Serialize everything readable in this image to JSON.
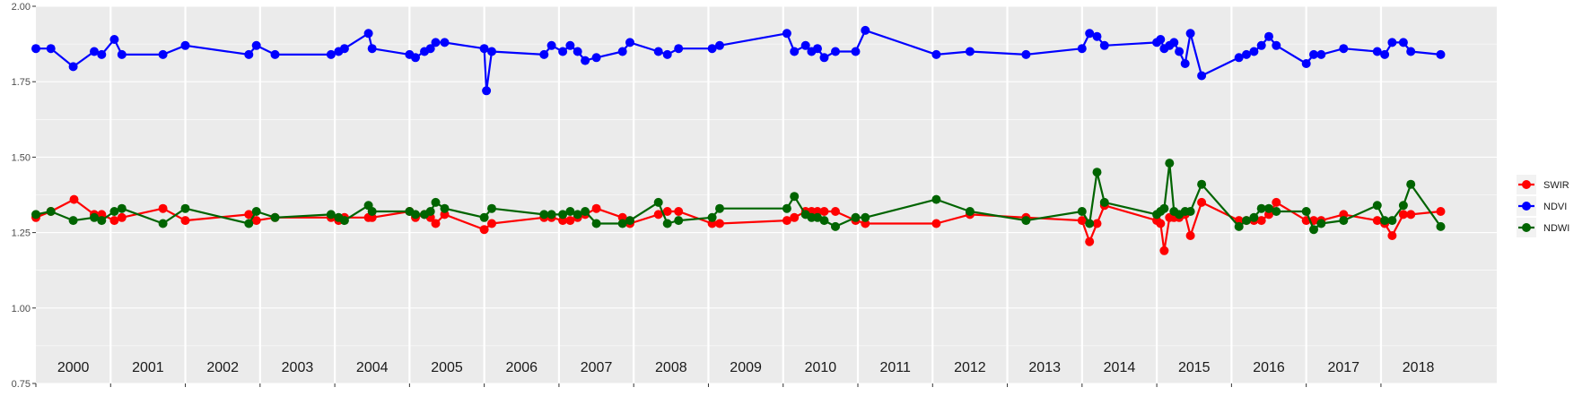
{
  "chart_data": {
    "type": "line",
    "title": "",
    "xlabel": "",
    "ylabel": "",
    "ylim": [
      0.75,
      2.0
    ],
    "xlim": [
      1999.5,
      2019.05
    ],
    "y_ticks": [
      {
        "value": 0.75,
        "label": "0.75"
      },
      {
        "value": 1.0,
        "label": "1.00"
      },
      {
        "value": 1.25,
        "label": "1.25"
      },
      {
        "value": 1.5,
        "label": "1.50"
      },
      {
        "value": 1.75,
        "label": "1.75"
      },
      {
        "value": 2.0,
        "label": "2.00"
      }
    ],
    "year_ticks": [
      2000,
      2001,
      2002,
      2003,
      2004,
      2005,
      2006,
      2007,
      2008,
      2009,
      2010,
      2011,
      2012,
      2013,
      2014,
      2015,
      2016,
      2017,
      2018
    ],
    "year_labels": [
      "2000",
      "2001",
      "2002",
      "2003",
      "2004",
      "2005",
      "2006",
      "2007",
      "2008",
      "2009",
      "2010",
      "2011",
      "2012",
      "2013",
      "2014",
      "2015",
      "2016",
      "2017",
      "2018"
    ],
    "grid": true,
    "legend": {
      "position": "right",
      "entries": [
        "SWIR",
        "NDVI",
        "NDWI"
      ]
    },
    "series": [
      {
        "name": "SWIR",
        "color": "#ff0000",
        "points": [
          [
            1999.5,
            1.3
          ],
          [
            1999.7,
            1.32
          ],
          [
            2000.01,
            1.36
          ],
          [
            2000.28,
            1.31
          ],
          [
            2000.38,
            1.31
          ],
          [
            2000.55,
            1.29
          ],
          [
            2000.65,
            1.3
          ],
          [
            2001.2,
            1.33
          ],
          [
            2001.5,
            1.29
          ],
          [
            2002.35,
            1.31
          ],
          [
            2002.45,
            1.29
          ],
          [
            2002.7,
            1.3
          ],
          [
            2003.45,
            1.3
          ],
          [
            2003.55,
            1.29
          ],
          [
            2003.63,
            1.3
          ],
          [
            2003.95,
            1.3
          ],
          [
            2004.0,
            1.3
          ],
          [
            2004.5,
            1.32
          ],
          [
            2004.58,
            1.3
          ],
          [
            2004.7,
            1.31
          ],
          [
            2004.78,
            1.3
          ],
          [
            2004.85,
            1.28
          ],
          [
            2004.97,
            1.31
          ],
          [
            2005.5,
            1.26
          ],
          [
            2005.6,
            1.28
          ],
          [
            2006.3,
            1.3
          ],
          [
            2006.4,
            1.3
          ],
          [
            2006.55,
            1.29
          ],
          [
            2006.65,
            1.29
          ],
          [
            2006.75,
            1.3
          ],
          [
            2006.85,
            1.31
          ],
          [
            2007.0,
            1.33
          ],
          [
            2007.35,
            1.3
          ],
          [
            2007.45,
            1.28
          ],
          [
            2007.83,
            1.31
          ],
          [
            2007.95,
            1.32
          ],
          [
            2008.1,
            1.32
          ],
          [
            2008.55,
            1.28
          ],
          [
            2008.65,
            1.28
          ],
          [
            2009.55,
            1.29
          ],
          [
            2009.65,
            1.3
          ],
          [
            2009.8,
            1.32
          ],
          [
            2009.88,
            1.32
          ],
          [
            2009.96,
            1.32
          ],
          [
            2010.05,
            1.32
          ],
          [
            2010.2,
            1.32
          ],
          [
            2010.47,
            1.29
          ],
          [
            2010.6,
            1.28
          ],
          [
            2011.55,
            1.28
          ],
          [
            2012.0,
            1.31
          ],
          [
            2012.75,
            1.3
          ],
          [
            2013.5,
            1.29
          ],
          [
            2013.6,
            1.22
          ],
          [
            2013.7,
            1.28
          ],
          [
            2013.8,
            1.34
          ],
          [
            2014.5,
            1.29
          ],
          [
            2014.55,
            1.28
          ],
          [
            2014.6,
            1.19
          ],
          [
            2014.67,
            1.3
          ],
          [
            2014.73,
            1.3
          ],
          [
            2014.8,
            1.3
          ],
          [
            2014.88,
            1.31
          ],
          [
            2014.95,
            1.24
          ],
          [
            2015.1,
            1.35
          ],
          [
            2015.6,
            1.29
          ],
          [
            2015.7,
            1.29
          ],
          [
            2015.8,
            1.29
          ],
          [
            2015.9,
            1.29
          ],
          [
            2016.0,
            1.31
          ],
          [
            2016.1,
            1.35
          ],
          [
            2016.5,
            1.29
          ],
          [
            2016.6,
            1.29
          ],
          [
            2016.7,
            1.29
          ],
          [
            2017.0,
            1.31
          ],
          [
            2017.45,
            1.29
          ],
          [
            2017.55,
            1.28
          ],
          [
            2017.65,
            1.24
          ],
          [
            2017.8,
            1.31
          ],
          [
            2017.9,
            1.31
          ],
          [
            2018.3,
            1.32
          ]
        ]
      },
      {
        "name": "NDVI",
        "color": "#0000ff",
        "points": [
          [
            1999.5,
            1.86
          ],
          [
            1999.7,
            1.86
          ],
          [
            2000.0,
            1.8
          ],
          [
            2000.28,
            1.85
          ],
          [
            2000.38,
            1.84
          ],
          [
            2000.55,
            1.89
          ],
          [
            2000.65,
            1.84
          ],
          [
            2001.2,
            1.84
          ],
          [
            2001.5,
            1.87
          ],
          [
            2002.35,
            1.84
          ],
          [
            2002.45,
            1.87
          ],
          [
            2002.7,
            1.84
          ],
          [
            2003.45,
            1.84
          ],
          [
            2003.55,
            1.85
          ],
          [
            2003.63,
            1.86
          ],
          [
            2003.95,
            1.91
          ],
          [
            2004.0,
            1.86
          ],
          [
            2004.5,
            1.84
          ],
          [
            2004.58,
            1.83
          ],
          [
            2004.7,
            1.85
          ],
          [
            2004.78,
            1.86
          ],
          [
            2004.85,
            1.88
          ],
          [
            2004.97,
            1.88
          ],
          [
            2005.5,
            1.86
          ],
          [
            2005.53,
            1.72
          ],
          [
            2005.6,
            1.85
          ],
          [
            2006.3,
            1.84
          ],
          [
            2006.4,
            1.87
          ],
          [
            2006.55,
            1.85
          ],
          [
            2006.65,
            1.87
          ],
          [
            2006.75,
            1.85
          ],
          [
            2006.85,
            1.82
          ],
          [
            2007.0,
            1.83
          ],
          [
            2007.35,
            1.85
          ],
          [
            2007.45,
            1.88
          ],
          [
            2007.83,
            1.85
          ],
          [
            2007.95,
            1.84
          ],
          [
            2008.1,
            1.86
          ],
          [
            2008.55,
            1.86
          ],
          [
            2008.65,
            1.87
          ],
          [
            2009.55,
            1.91
          ],
          [
            2009.65,
            1.85
          ],
          [
            2009.8,
            1.87
          ],
          [
            2009.88,
            1.85
          ],
          [
            2009.96,
            1.86
          ],
          [
            2010.05,
            1.83
          ],
          [
            2010.2,
            1.85
          ],
          [
            2010.47,
            1.85
          ],
          [
            2010.6,
            1.92
          ],
          [
            2011.55,
            1.84
          ],
          [
            2012.0,
            1.85
          ],
          [
            2012.75,
            1.84
          ],
          [
            2013.5,
            1.86
          ],
          [
            2013.6,
            1.91
          ],
          [
            2013.7,
            1.9
          ],
          [
            2013.8,
            1.87
          ],
          [
            2014.5,
            1.88
          ],
          [
            2014.55,
            1.89
          ],
          [
            2014.6,
            1.86
          ],
          [
            2014.67,
            1.87
          ],
          [
            2014.73,
            1.88
          ],
          [
            2014.8,
            1.85
          ],
          [
            2014.88,
            1.81
          ],
          [
            2014.95,
            1.91
          ],
          [
            2015.1,
            1.77
          ],
          [
            2015.6,
            1.83
          ],
          [
            2015.7,
            1.84
          ],
          [
            2015.8,
            1.85
          ],
          [
            2015.9,
            1.87
          ],
          [
            2016.0,
            1.9
          ],
          [
            2016.1,
            1.87
          ],
          [
            2016.5,
            1.81
          ],
          [
            2016.6,
            1.84
          ],
          [
            2016.7,
            1.84
          ],
          [
            2017.0,
            1.86
          ],
          [
            2017.45,
            1.85
          ],
          [
            2017.55,
            1.84
          ],
          [
            2017.65,
            1.88
          ],
          [
            2017.8,
            1.88
          ],
          [
            2017.9,
            1.85
          ],
          [
            2018.3,
            1.84
          ]
        ]
      },
      {
        "name": "NDWI",
        "color": "#006400",
        "points": [
          [
            1999.5,
            1.31
          ],
          [
            1999.7,
            1.32
          ],
          [
            2000.0,
            1.29
          ],
          [
            2000.28,
            1.3
          ],
          [
            2000.38,
            1.29
          ],
          [
            2000.55,
            1.32
          ],
          [
            2000.65,
            1.33
          ],
          [
            2001.2,
            1.28
          ],
          [
            2001.5,
            1.33
          ],
          [
            2002.35,
            1.28
          ],
          [
            2002.45,
            1.32
          ],
          [
            2002.7,
            1.3
          ],
          [
            2003.45,
            1.31
          ],
          [
            2003.55,
            1.3
          ],
          [
            2003.63,
            1.29
          ],
          [
            2003.95,
            1.34
          ],
          [
            2004.0,
            1.32
          ],
          [
            2004.5,
            1.32
          ],
          [
            2004.58,
            1.31
          ],
          [
            2004.7,
            1.31
          ],
          [
            2004.78,
            1.32
          ],
          [
            2004.85,
            1.35
          ],
          [
            2004.97,
            1.33
          ],
          [
            2005.5,
            1.3
          ],
          [
            2005.6,
            1.33
          ],
          [
            2006.3,
            1.31
          ],
          [
            2006.4,
            1.31
          ],
          [
            2006.55,
            1.31
          ],
          [
            2006.65,
            1.32
          ],
          [
            2006.75,
            1.31
          ],
          [
            2006.85,
            1.32
          ],
          [
            2007.0,
            1.28
          ],
          [
            2007.35,
            1.28
          ],
          [
            2007.45,
            1.29
          ],
          [
            2007.83,
            1.35
          ],
          [
            2007.95,
            1.28
          ],
          [
            2008.1,
            1.29
          ],
          [
            2008.55,
            1.3
          ],
          [
            2008.65,
            1.33
          ],
          [
            2009.55,
            1.33
          ],
          [
            2009.65,
            1.37
          ],
          [
            2009.8,
            1.31
          ],
          [
            2009.88,
            1.3
          ],
          [
            2009.96,
            1.3
          ],
          [
            2010.05,
            1.29
          ],
          [
            2010.2,
            1.27
          ],
          [
            2010.47,
            1.3
          ],
          [
            2010.6,
            1.3
          ],
          [
            2011.55,
            1.36
          ],
          [
            2012.0,
            1.32
          ],
          [
            2012.75,
            1.29
          ],
          [
            2013.5,
            1.32
          ],
          [
            2013.6,
            1.28
          ],
          [
            2013.7,
            1.45
          ],
          [
            2013.8,
            1.35
          ],
          [
            2014.5,
            1.31
          ],
          [
            2014.55,
            1.32
          ],
          [
            2014.6,
            1.33
          ],
          [
            2014.67,
            1.48
          ],
          [
            2014.73,
            1.32
          ],
          [
            2014.8,
            1.31
          ],
          [
            2014.88,
            1.32
          ],
          [
            2014.95,
            1.32
          ],
          [
            2015.1,
            1.41
          ],
          [
            2015.6,
            1.27
          ],
          [
            2015.7,
            1.29
          ],
          [
            2015.8,
            1.3
          ],
          [
            2015.9,
            1.33
          ],
          [
            2016.0,
            1.33
          ],
          [
            2016.1,
            1.32
          ],
          [
            2016.5,
            1.32
          ],
          [
            2016.6,
            1.26
          ],
          [
            2016.7,
            1.28
          ],
          [
            2017.0,
            1.29
          ],
          [
            2017.45,
            1.34
          ],
          [
            2017.55,
            1.29
          ],
          [
            2017.65,
            1.29
          ],
          [
            2017.8,
            1.34
          ],
          [
            2017.9,
            1.41
          ],
          [
            2018.3,
            1.27
          ]
        ]
      }
    ]
  }
}
